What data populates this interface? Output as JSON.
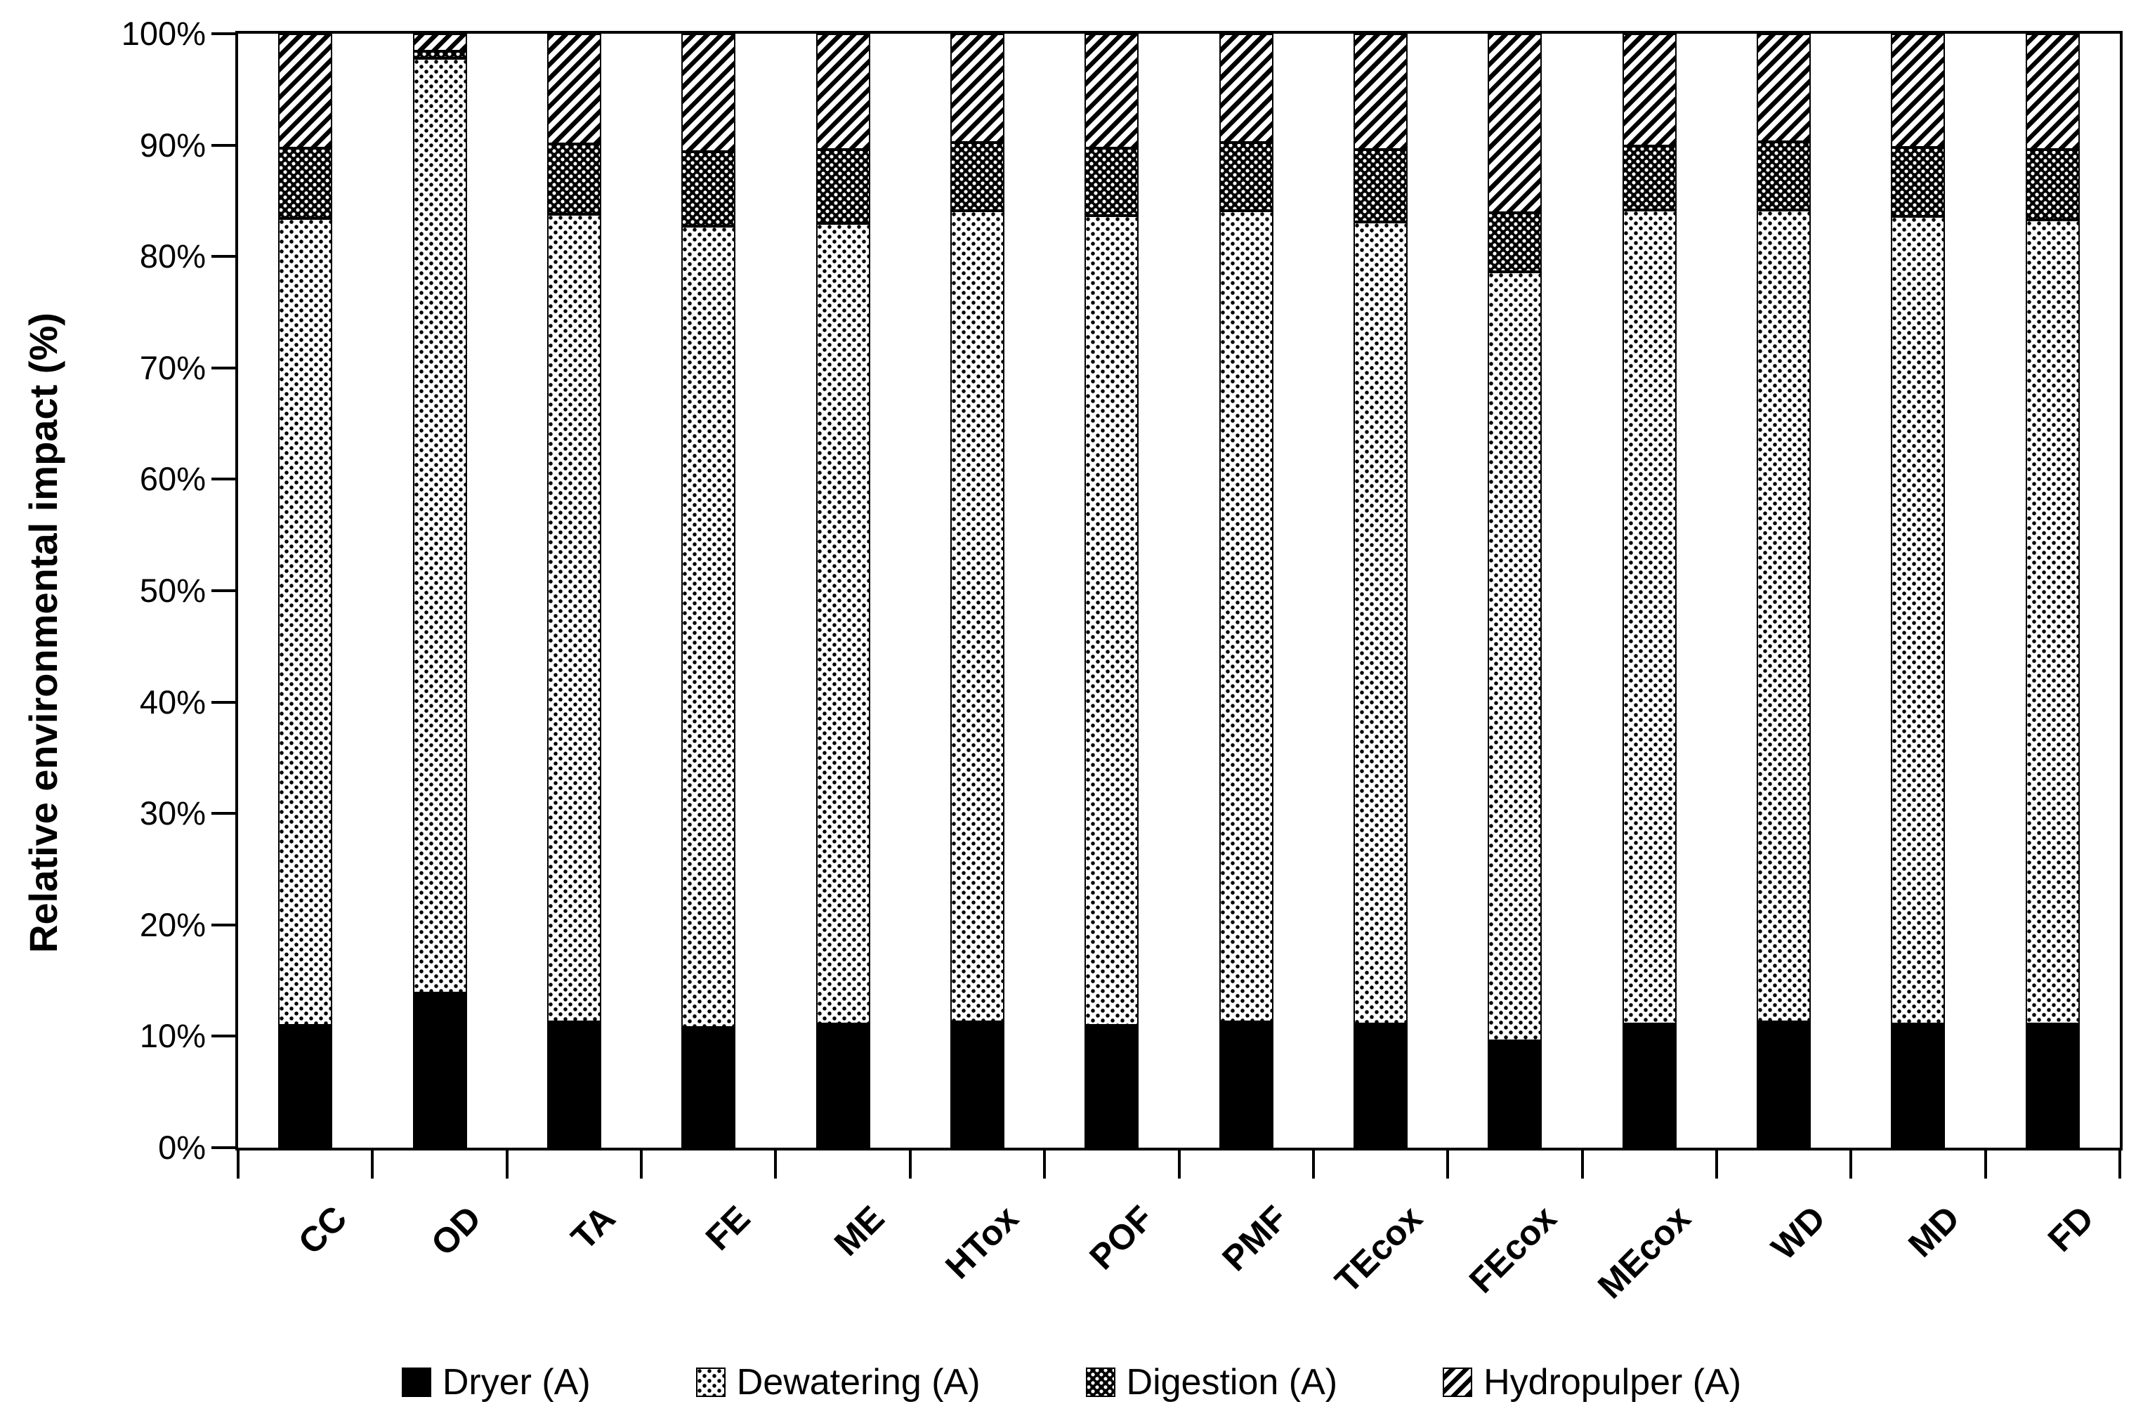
{
  "page": {
    "background": "#ffffff",
    "foreground": "#000000"
  },
  "chart_data": {
    "type": "bar",
    "stacked": true,
    "orientation": "vertical",
    "title": "",
    "xlabel": "",
    "ylabel": "Relative environmental impact (%)",
    "ylim": [
      0,
      100
    ],
    "grid": false,
    "legend_position": "bottom",
    "y_tick_labels": [
      "0%",
      "10%",
      "20%",
      "30%",
      "40%",
      "50%",
      "60%",
      "70%",
      "80%",
      "90%",
      "100%"
    ],
    "categories": [
      "CC",
      "OD",
      "TA",
      "FE",
      "ME",
      "HTox",
      "POF",
      "PMF",
      "TEcox",
      "FEcox",
      "MEcox",
      "WD",
      "MD",
      "FD"
    ],
    "series": [
      {
        "name": "Dryer (A)",
        "pattern": "solid-black",
        "values": [
          11.0,
          13.9,
          11.3,
          10.8,
          11.1,
          11.3,
          11.0,
          11.3,
          11.1,
          9.6,
          11.1,
          11.3,
          11.1,
          11.1
        ]
      },
      {
        "name": "Dewatering (A)",
        "pattern": "dot-light",
        "values": [
          72.4,
          83.9,
          72.5,
          71.9,
          71.9,
          72.8,
          72.7,
          72.8,
          72.0,
          69.0,
          73.1,
          72.9,
          72.5,
          72.2
        ]
      },
      {
        "name": "Digestion (A)",
        "pattern": "dot-dark",
        "values": [
          6.3,
          0.6,
          6.3,
          6.7,
          6.6,
          6.1,
          6.0,
          6.1,
          6.5,
          5.3,
          5.7,
          6.1,
          6.2,
          6.3
        ]
      },
      {
        "name": "Hydropulper (A)",
        "pattern": "hatch-diagonal",
        "values": [
          10.3,
          1.6,
          9.9,
          10.6,
          10.4,
          9.8,
          10.3,
          9.8,
          10.4,
          16.1,
          10.1,
          9.7,
          10.2,
          10.4
        ]
      }
    ]
  }
}
